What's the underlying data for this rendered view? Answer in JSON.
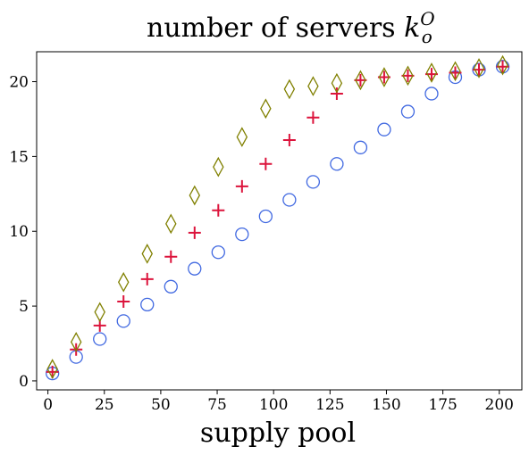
{
  "chart_data": {
    "type": "scatter",
    "title_main": "number of servers ",
    "title_var": "k",
    "title_sup": "O",
    "title_sub": "o",
    "xlabel": "supply pool",
    "ylabel": "",
    "xlim": [
      -5,
      210
    ],
    "ylim": [
      -0.6,
      22
    ],
    "xticks": [
      0,
      25,
      50,
      75,
      100,
      125,
      150,
      175,
      200
    ],
    "yticks": [
      0,
      5,
      10,
      15,
      20
    ],
    "grid": false,
    "x": [
      2,
      12.5,
      23,
      33.5,
      44,
      54.5,
      65,
      75.5,
      86,
      96.5,
      107,
      117.5,
      128,
      138.5,
      149,
      159.5,
      170,
      180.5,
      191,
      201.5
    ],
    "series": [
      {
        "marker": "circle",
        "color": "#4169e1",
        "values": [
          0.5,
          1.6,
          2.8,
          4.0,
          5.1,
          6.3,
          7.5,
          8.6,
          9.8,
          11.0,
          12.1,
          13.3,
          14.5,
          15.6,
          16.8,
          18.0,
          19.2,
          20.3,
          20.8,
          21.0
        ]
      },
      {
        "marker": "plus",
        "color": "#dc143c",
        "values": [
          0.6,
          2.1,
          3.7,
          5.3,
          6.8,
          8.3,
          9.9,
          11.4,
          13.0,
          14.5,
          16.1,
          17.6,
          19.2,
          20.1,
          20.3,
          20.4,
          20.5,
          20.6,
          20.8,
          21.0
        ]
      },
      {
        "marker": "diamond",
        "color": "#808000",
        "values": [
          0.8,
          2.6,
          4.6,
          6.6,
          8.5,
          10.5,
          12.4,
          14.3,
          16.3,
          18.2,
          19.5,
          19.7,
          19.9,
          20.1,
          20.3,
          20.4,
          20.6,
          20.7,
          20.9,
          21.1
        ]
      }
    ]
  }
}
